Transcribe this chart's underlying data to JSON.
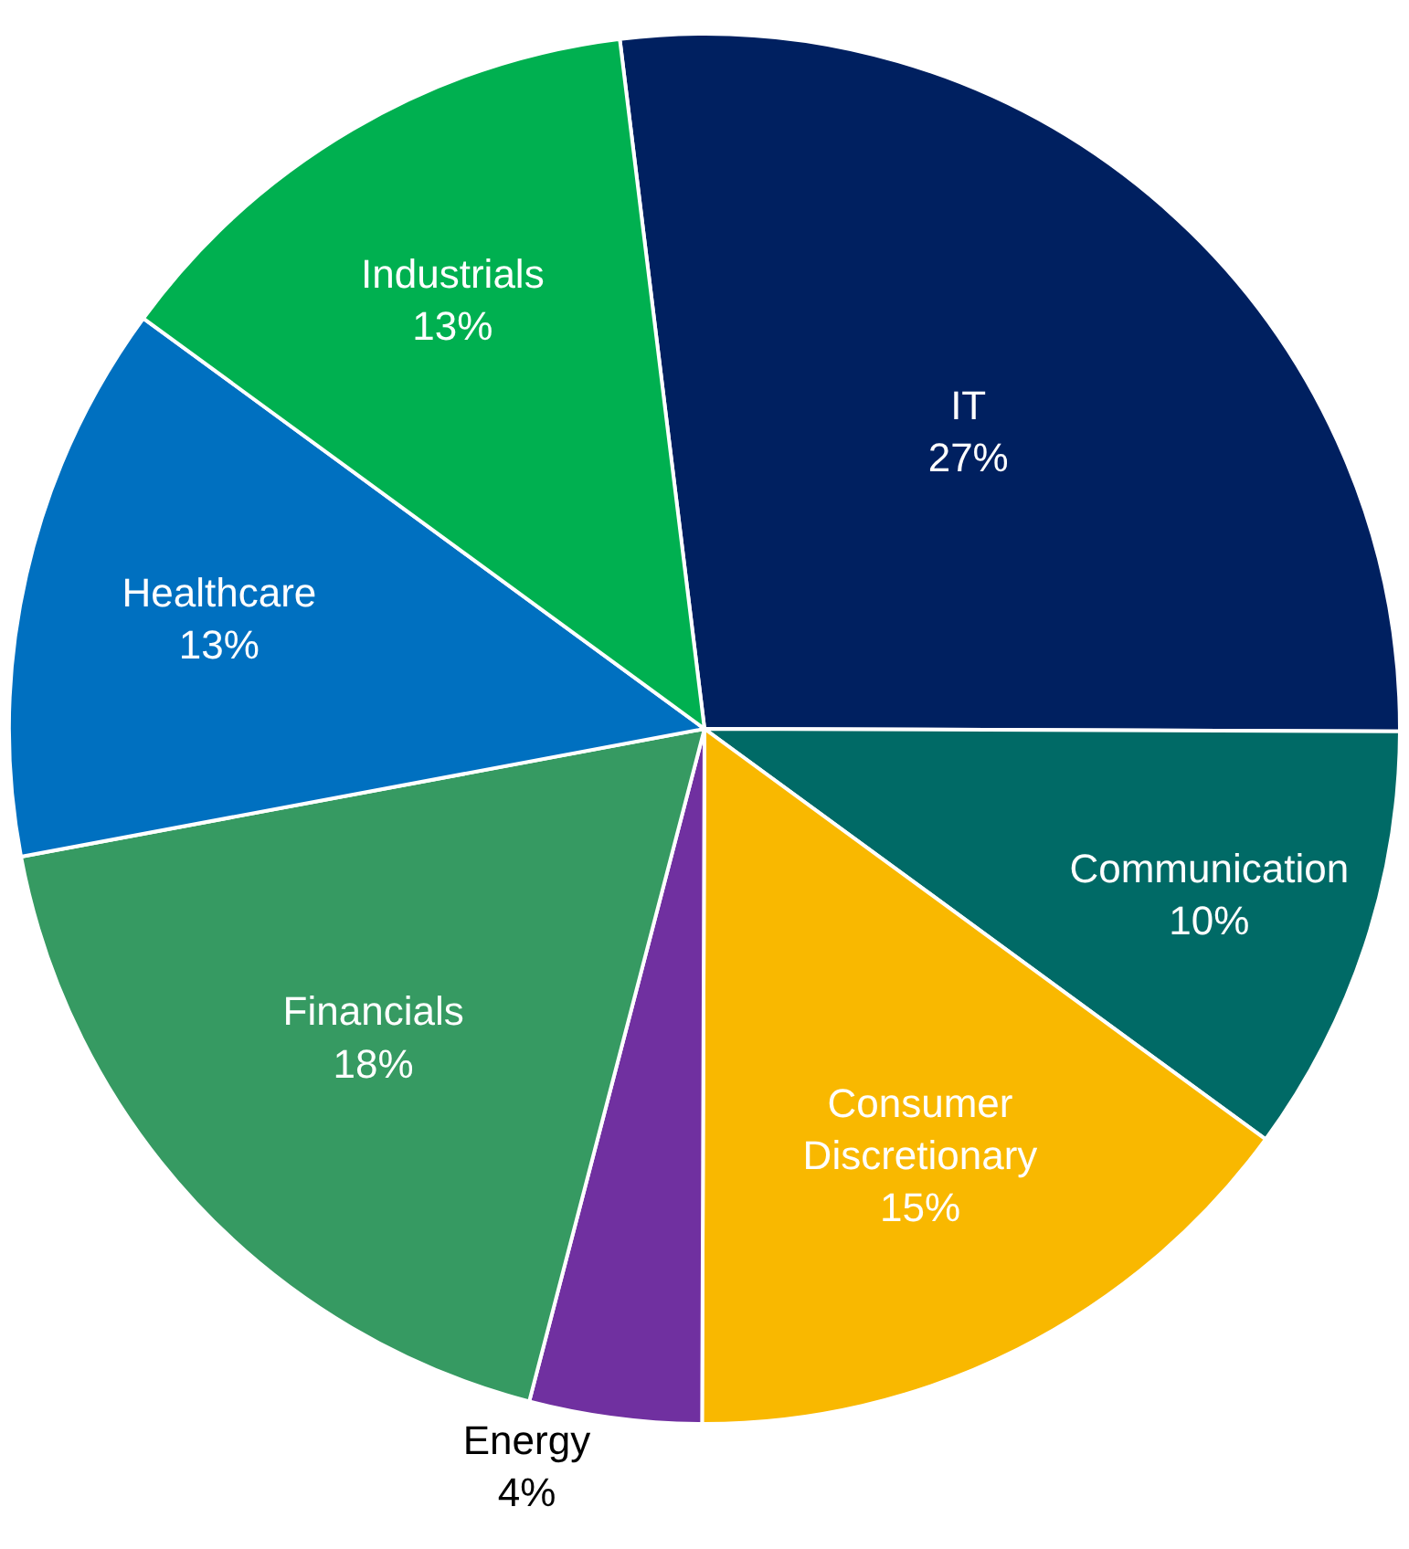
{
  "chart_data": {
    "type": "pie",
    "categories": [
      "IT",
      "Communication",
      "Consumer Discretionary",
      "Energy",
      "Financials",
      "Healthcare",
      "Industrials"
    ],
    "values": [
      27,
      10,
      15,
      4,
      18,
      13,
      13
    ],
    "value_labels": [
      "27%",
      "10%",
      "15%",
      "4%",
      "18%",
      "13%",
      "13%"
    ],
    "colors": [
      "#002060",
      "#006a66",
      "#f9b800",
      "#7030a0",
      "#369a62",
      "#0070c0",
      "#00b050"
    ],
    "legend": false
  }
}
